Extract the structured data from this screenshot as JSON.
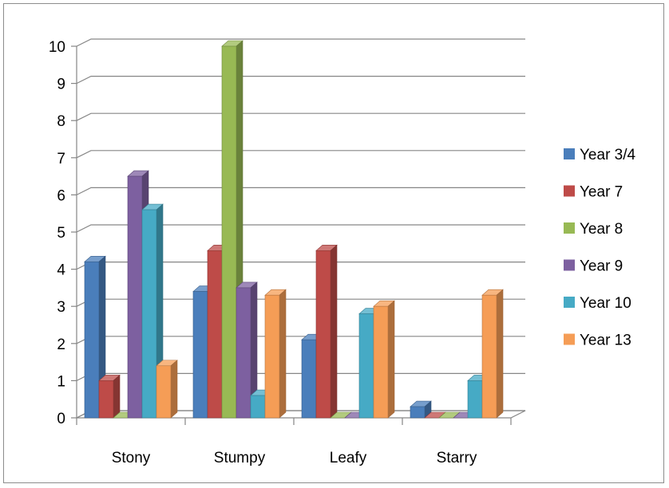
{
  "chart_data": {
    "type": "bar",
    "categories": [
      "Stony",
      "Stumpy",
      "Leafy",
      "Starry"
    ],
    "series": [
      {
        "name": "Year 3/4",
        "color": "#4a7ebb",
        "values": [
          4.2,
          3.4,
          2.1,
          0.3
        ]
      },
      {
        "name": "Year 7",
        "color": "#be4b48",
        "values": [
          1.0,
          4.5,
          4.5,
          0.0
        ]
      },
      {
        "name": "Year 8",
        "color": "#98b954",
        "values": [
          0.0,
          10.0,
          0.0,
          0.0
        ]
      },
      {
        "name": "Year 9",
        "color": "#7d60a0",
        "values": [
          6.5,
          3.5,
          0.0,
          0.0
        ]
      },
      {
        "name": "Year 10",
        "color": "#46aac5",
        "values": [
          5.6,
          0.6,
          2.8,
          1.0
        ]
      },
      {
        "name": "Year 13",
        "color": "#f59d56",
        "values": [
          1.4,
          3.3,
          3.0,
          3.3
        ]
      }
    ],
    "yticks": [
      "0",
      "1",
      "2",
      "3",
      "4",
      "5",
      "6",
      "7",
      "8",
      "9",
      "10"
    ],
    "ylim": [
      0,
      10
    ],
    "grid": true,
    "legend": "right"
  }
}
